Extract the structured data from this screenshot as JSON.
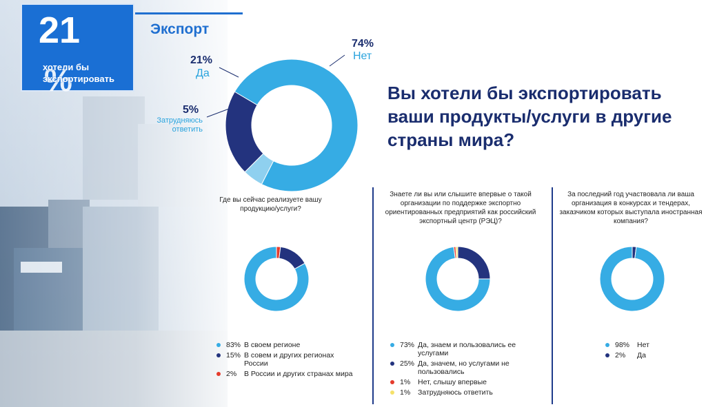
{
  "kpi": {
    "number": "21",
    "percent_sign": "%",
    "text": "хотели бы экспортировать"
  },
  "section_title": "Экспорт",
  "main_question": "Вы хотели бы экспортировать ваши продукты/услуги в  другие страны мира?",
  "colors": {
    "light_blue": "#36ace4",
    "dark_blue": "#23337e",
    "pale_blue": "#8fd0ef",
    "red": "#e53b2c",
    "yellow": "#f5e16a",
    "title_blue": "#1f6fd0",
    "navy_text": "#1a2d6e"
  },
  "chart_data": [
    {
      "type": "pie",
      "categories": [
        "Нет",
        "Да",
        "Затрудняюсь ответить"
      ],
      "values": [
        74,
        21,
        5
      ],
      "labels": [
        "74%",
        "21%",
        "5%"
      ],
      "colors": [
        "#36ace4",
        "#23337e",
        "#8fd0ef"
      ]
    },
    {
      "type": "pie",
      "title": "Где вы сейчас реализуете вашу продукцию/услуги?",
      "categories": [
        "В своем регионе",
        "В совем и других регионах России",
        "В России и других странах мира"
      ],
      "values": [
        83,
        15,
        2
      ],
      "labels": [
        "83%",
        "15%",
        "2%"
      ],
      "colors": [
        "#36ace4",
        "#23337e",
        "#e53b2c"
      ]
    },
    {
      "type": "pie",
      "title": "Знаете ли вы или слышите впервые о такой организации по поддержке экспортно ориентированных  предприятий как российский  экспортный центр (РЭЦ)?",
      "categories": [
        "Да, знаем и пользовались ее услугами",
        "Да, значем, но услугами не пользовались",
        "Нет, слышу впервые",
        "Затрудняюсь ответить"
      ],
      "values": [
        73,
        25,
        1,
        1
      ],
      "labels": [
        "73%",
        "25%",
        "1%",
        "1%"
      ],
      "colors": [
        "#36ace4",
        "#23337e",
        "#e53b2c",
        "#f5e16a"
      ]
    },
    {
      "type": "pie",
      "title": "За последний год участвовала ли  ваша организация в конкурсах и  тендерах, заказчиком которых выступала иностранная компания?",
      "categories": [
        "Нет",
        "Да"
      ],
      "values": [
        98,
        2
      ],
      "labels": [
        "98%",
        "2%"
      ],
      "colors": [
        "#36ace4",
        "#23337e"
      ]
    }
  ]
}
